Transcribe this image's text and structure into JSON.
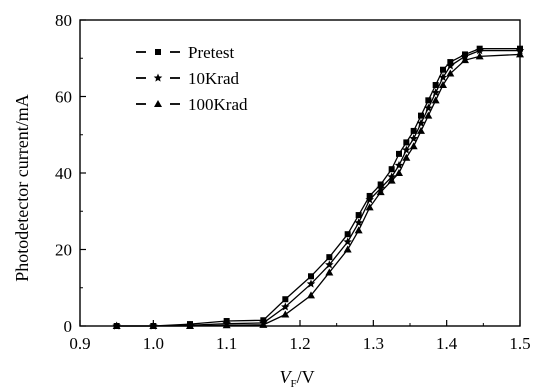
{
  "chart_data": {
    "type": "line",
    "xlabel": "V",
    "xlabel_sub": "F",
    "xlabel_unit": "/V",
    "ylabel": "Photodetector current/mA",
    "xlim": [
      0.9,
      1.5
    ],
    "ylim": [
      0,
      80
    ],
    "xticks": [
      "0.9",
      "1.0",
      "1.1",
      "1.2",
      "1.3",
      "1.4",
      "1.5"
    ],
    "yticks": [
      "0",
      "20",
      "40",
      "60",
      "80"
    ],
    "grid": false,
    "legend_position": "top-left",
    "series": [
      {
        "name": "Pretest",
        "marker": "square",
        "x": [
          0.95,
          1.0,
          1.05,
          1.1,
          1.15,
          1.18,
          1.215,
          1.24,
          1.265,
          1.28,
          1.295,
          1.31,
          1.325,
          1.335,
          1.345,
          1.355,
          1.365,
          1.375,
          1.385,
          1.395,
          1.405,
          1.425,
          1.445,
          1.5
        ],
        "y": [
          0,
          0,
          0.5,
          1.3,
          1.5,
          7,
          13,
          18,
          24,
          29,
          34,
          37,
          41,
          45,
          48,
          51,
          55,
          59,
          63,
          67,
          69,
          71,
          72.5,
          72.5
        ]
      },
      {
        "name": "10Krad",
        "marker": "star",
        "x": [
          0.95,
          1.0,
          1.05,
          1.1,
          1.15,
          1.18,
          1.215,
          1.24,
          1.265,
          1.28,
          1.295,
          1.31,
          1.325,
          1.335,
          1.345,
          1.355,
          1.365,
          1.375,
          1.385,
          1.395,
          1.405,
          1.425,
          1.445,
          1.5
        ],
        "y": [
          0,
          0,
          0.2,
          0.6,
          0.8,
          5,
          11,
          16,
          22,
          27,
          33,
          36,
          39,
          42,
          46,
          49,
          53,
          57,
          61,
          65,
          68,
          70.5,
          72,
          72
        ]
      },
      {
        "name": "100Krad",
        "marker": "triangle",
        "x": [
          0.95,
          1.0,
          1.05,
          1.1,
          1.15,
          1.18,
          1.215,
          1.24,
          1.265,
          1.28,
          1.295,
          1.31,
          1.325,
          1.335,
          1.345,
          1.355,
          1.365,
          1.375,
          1.385,
          1.395,
          1.405,
          1.425,
          1.445,
          1.5
        ],
        "y": [
          0,
          0,
          0,
          0.2,
          0.3,
          3,
          8,
          14,
          20,
          25,
          31,
          35,
          38,
          40,
          44,
          47,
          51,
          55,
          59,
          63,
          66,
          69.5,
          70.5,
          71
        ]
      }
    ]
  }
}
